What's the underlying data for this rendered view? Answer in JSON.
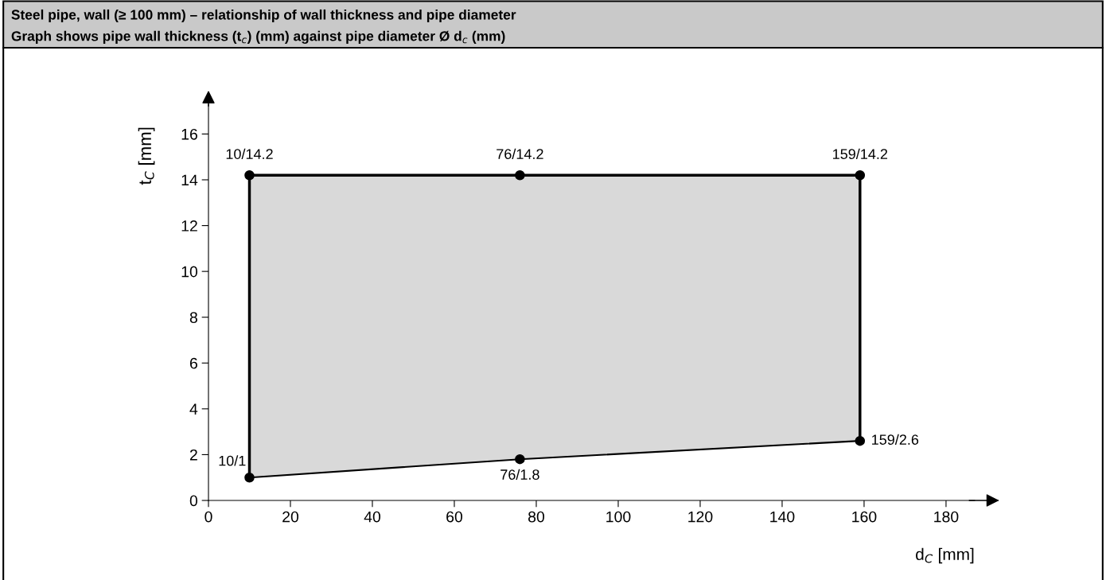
{
  "chart_data": {
    "type": "line",
    "title": "Steel pipe, wall (≥ 100 mm) – relationship of wall thickness and pipe diameter",
    "subtitle": "Graph shows pipe wall thickness (t$_{c}$) (mm) against pipe diameter Ø d$_{c}$ (mm)",
    "xlabel": "d$_{C}$ [mm]",
    "ylabel": "t$_{C}$ [mm]",
    "xlim": [
      0,
      187
    ],
    "ylim": [
      0,
      17.3
    ],
    "xticks": [
      0,
      20,
      40,
      60,
      80,
      100,
      120,
      140,
      160,
      180
    ],
    "yticks": [
      0,
      2,
      4,
      6,
      8,
      10,
      12,
      14,
      16
    ],
    "grid": false,
    "legend": false,
    "marker": "circle",
    "line_style": "solid",
    "series": [
      {
        "color": "#000000",
        "x": [
          10,
          76,
          159
        ],
        "values": [
          14.2,
          14.2,
          14.2
        ],
        "lower": [
          1,
          1.8,
          2.6
        ],
        "upper": [
          14.2,
          14.2,
          14.2
        ],
        "value_labels": [
          "10/14.2",
          "76/14.2",
          "159/14.2"
        ]
      },
      {
        "color": "#000000",
        "x": [
          10,
          76,
          159
        ],
        "values": [
          1,
          1.8,
          2.6
        ],
        "value_labels": [
          "10/1",
          "76/1.8",
          "159/2.6"
        ]
      }
    ]
  }
}
